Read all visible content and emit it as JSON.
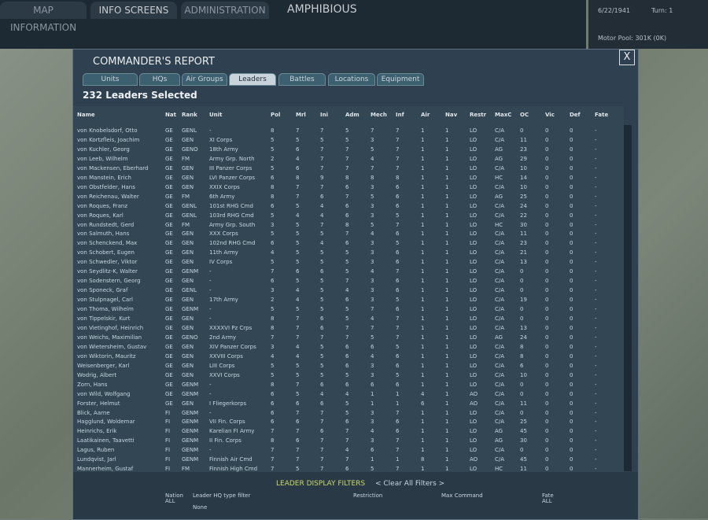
{
  "top_bar": {
    "tabs": [
      "MAP INFORMATION",
      "INFO SCREENS",
      "ADMINISTRATION"
    ],
    "mode": "AMPHIBIOUS",
    "date": "6/22/1941",
    "turn": "Turn: 1",
    "motor_pool": "Motor Pool: 301K (0K)"
  },
  "dialog": {
    "title": "COMMANDER'S REPORT",
    "close": "X",
    "tabs": [
      "Units",
      "HQs",
      "Air Groups",
      "Leaders",
      "Battles",
      "Locations",
      "Equipment"
    ],
    "selected": "232 Leaders Selected"
  },
  "table": {
    "columns": [
      "Name",
      "Nat",
      "Rank",
      "Unit",
      "Pol",
      "Mrl",
      "Ini",
      "Adm",
      "Mech",
      "Inf",
      "Air",
      "Nav",
      "Restr",
      "MaxC",
      "OC",
      "Vic",
      "Def",
      "Fate"
    ],
    "rows": [
      [
        "von Knobelsdorf, Otto",
        "GE",
        "GENL",
        "-",
        "8",
        "7",
        "7",
        "5",
        "7",
        "7",
        "1",
        "1",
        "LO",
        "C/A",
        "0",
        "0",
        "0",
        "-"
      ],
      [
        "von Kortzfleis, Joachim",
        "GE",
        "GEN",
        "XI Corps",
        "5",
        "5",
        "5",
        "5",
        "3",
        "7",
        "1",
        "1",
        "LO",
        "C/A",
        "11",
        "0",
        "0",
        "-"
      ],
      [
        "von Kuchler, Georg",
        "GE",
        "GENO",
        "18th Army",
        "5",
        "6",
        "7",
        "7",
        "5",
        "7",
        "1",
        "1",
        "LO",
        "AG",
        "23",
        "0",
        "0",
        "-"
      ],
      [
        "von Leeb, Wilhelm",
        "GE",
        "FM",
        "Army Grp. North",
        "2",
        "4",
        "7",
        "7",
        "4",
        "7",
        "1",
        "1",
        "LO",
        "AG",
        "29",
        "0",
        "0",
        "-"
      ],
      [
        "von Mackensen, Eberhard",
        "GE",
        "GEN",
        "III Panzer Corps",
        "5",
        "6",
        "7",
        "7",
        "7",
        "7",
        "1",
        "1",
        "LO",
        "C/A",
        "10",
        "0",
        "0",
        "-"
      ],
      [
        "von Manstein, Erich",
        "GE",
        "GEN",
        "LVI Panzer Corps",
        "6",
        "8",
        "9",
        "8",
        "8",
        "8",
        "1",
        "1",
        "LO",
        "HC",
        "14",
        "0",
        "0",
        "-"
      ],
      [
        "von Obstfelder, Hans",
        "GE",
        "GEN",
        "XXIX Corps",
        "8",
        "7",
        "7",
        "6",
        "3",
        "6",
        "1",
        "1",
        "LO",
        "C/A",
        "10",
        "0",
        "0",
        "-"
      ],
      [
        "von Reichenau, Walter",
        "GE",
        "FM",
        "6th Army",
        "8",
        "7",
        "6",
        "7",
        "5",
        "6",
        "1",
        "1",
        "LO",
        "AG",
        "25",
        "0",
        "0",
        "-"
      ],
      [
        "von Roques, Franz",
        "GE",
        "GENL",
        "101st RHG Cmd",
        "6",
        "5",
        "4",
        "6",
        "3",
        "6",
        "1",
        "1",
        "LO",
        "C/A",
        "24",
        "0",
        "0",
        "-"
      ],
      [
        "von Roques, Karl",
        "GE",
        "GENL",
        "103rd RHG Cmd",
        "5",
        "4",
        "4",
        "6",
        "3",
        "5",
        "1",
        "1",
        "LO",
        "C/A",
        "22",
        "0",
        "0",
        "-"
      ],
      [
        "von Rundstedt, Gerd",
        "GE",
        "FM",
        "Army Grp. South",
        "3",
        "5",
        "7",
        "8",
        "5",
        "7",
        "1",
        "1",
        "LO",
        "HC",
        "30",
        "0",
        "0",
        "-"
      ],
      [
        "von Salmuth, Hans",
        "GE",
        "GEN",
        "XXX Corps",
        "5",
        "5",
        "5",
        "7",
        "4",
        "6",
        "1",
        "1",
        "LO",
        "C/A",
        "11",
        "0",
        "0",
        "-"
      ],
      [
        "von Schenckend, Max",
        "GE",
        "GEN",
        "102nd RHG Cmd",
        "6",
        "5",
        "4",
        "6",
        "3",
        "5",
        "1",
        "1",
        "LO",
        "C/A",
        "23",
        "0",
        "0",
        "-"
      ],
      [
        "von Schobert, Eugen",
        "GE",
        "GEN",
        "11th Army",
        "4",
        "5",
        "5",
        "5",
        "3",
        "6",
        "1",
        "1",
        "LO",
        "C/A",
        "21",
        "0",
        "0",
        "-"
      ],
      [
        "von Schwedler, Viktor",
        "GE",
        "GEN",
        "IV Corps",
        "5",
        "5",
        "5",
        "5",
        "3",
        "6",
        "1",
        "1",
        "LO",
        "C/A",
        "13",
        "0",
        "0",
        "-"
      ],
      [
        "von Seydlitz-K, Walter",
        "GE",
        "GENM",
        "-",
        "7",
        "6",
        "6",
        "5",
        "4",
        "7",
        "1",
        "1",
        "LO",
        "C/A",
        "0",
        "0",
        "0",
        "-"
      ],
      [
        "von Sodenstern, Georg",
        "GE",
        "GEN",
        "-",
        "6",
        "5",
        "5",
        "7",
        "3",
        "6",
        "1",
        "1",
        "LO",
        "C/A",
        "0",
        "0",
        "0",
        "-"
      ],
      [
        "von Sponeck, Graf",
        "GE",
        "GENL",
        "-",
        "3",
        "4",
        "5",
        "4",
        "3",
        "6",
        "1",
        "1",
        "LO",
        "C/A",
        "0",
        "0",
        "0",
        "-"
      ],
      [
        "von Stulpnagel, Carl",
        "GE",
        "GEN",
        "17th Army",
        "2",
        "4",
        "5",
        "6",
        "3",
        "5",
        "1",
        "1",
        "LO",
        "C/A",
        "19",
        "0",
        "0",
        "-"
      ],
      [
        "von Thoma, Wilhelm",
        "GE",
        "GENM",
        "-",
        "5",
        "5",
        "5",
        "5",
        "7",
        "6",
        "1",
        "1",
        "LO",
        "C/A",
        "0",
        "0",
        "0",
        "-"
      ],
      [
        "von Tippelskir, Kurt",
        "GE",
        "GEN",
        "-",
        "8",
        "7",
        "6",
        "5",
        "4",
        "7",
        "1",
        "1",
        "LO",
        "C/A",
        "0",
        "0",
        "0",
        "-"
      ],
      [
        "von Vietinghof, Heinrich",
        "GE",
        "GEN",
        "XXXXVI Pz Crps",
        "8",
        "7",
        "6",
        "7",
        "7",
        "7",
        "1",
        "1",
        "LO",
        "C/A",
        "13",
        "0",
        "0",
        "-"
      ],
      [
        "von Weichs, Maximilian",
        "GE",
        "GENO",
        "2nd Army",
        "7",
        "7",
        "7",
        "7",
        "5",
        "7",
        "1",
        "1",
        "LO",
        "AG",
        "24",
        "0",
        "0",
        "-"
      ],
      [
        "von Wietersheim, Gustav",
        "GE",
        "GEN",
        "XIV Panzer Corps",
        "3",
        "4",
        "5",
        "6",
        "6",
        "5",
        "1",
        "1",
        "LO",
        "C/A",
        "8",
        "0",
        "0",
        "-"
      ],
      [
        "von Wiktorin, Mauritz",
        "GE",
        "GEN",
        "XXVIII Corps",
        "4",
        "4",
        "5",
        "6",
        "4",
        "6",
        "1",
        "1",
        "LO",
        "C/A",
        "8",
        "0",
        "0",
        "-"
      ],
      [
        "Weisenberger, Karl",
        "GE",
        "GEN",
        "LIII Corps",
        "5",
        "5",
        "5",
        "6",
        "3",
        "6",
        "1",
        "1",
        "LO",
        "C/A",
        "6",
        "0",
        "0",
        "-"
      ],
      [
        "Wodrig, Albert",
        "GE",
        "GEN",
        "XXVI Corps",
        "5",
        "5",
        "5",
        "5",
        "3",
        "5",
        "1",
        "1",
        "LO",
        "C/A",
        "10",
        "0",
        "0",
        "-"
      ],
      [
        "Zorn, Hans",
        "GE",
        "GENM",
        "-",
        "8",
        "7",
        "6",
        "6",
        "6",
        "6",
        "1",
        "1",
        "LO",
        "C/A",
        "0",
        "0",
        "0",
        "-"
      ],
      [
        "von Wild, Wolfgang",
        "GE",
        "GENM",
        "-",
        "6",
        "5",
        "4",
        "4",
        "1",
        "1",
        "4",
        "1",
        "AO",
        "C/A",
        "0",
        "0",
        "0",
        "-"
      ],
      [
        "Forster, Helmut",
        "GE",
        "GEN",
        "I Fliegerkorps",
        "6",
        "6",
        "6",
        "5",
        "1",
        "1",
        "6",
        "1",
        "AO",
        "C/A",
        "11",
        "0",
        "0",
        "-"
      ],
      [
        "Blick, Aarne",
        "FI",
        "GENM",
        "-",
        "6",
        "7",
        "7",
        "5",
        "3",
        "7",
        "1",
        "1",
        "LO",
        "C/A",
        "0",
        "0",
        "0",
        "-"
      ],
      [
        "Hagglund, Woldemar",
        "FI",
        "GENM",
        "VII Fin. Corps",
        "6",
        "6",
        "7",
        "6",
        "3",
        "6",
        "1",
        "1",
        "LO",
        "C/A",
        "25",
        "0",
        "0",
        "-"
      ],
      [
        "Heinrichs, Erik",
        "FI",
        "GENM",
        "Karelian FI Army",
        "7",
        "7",
        "6",
        "7",
        "4",
        "6",
        "1",
        "1",
        "LO",
        "AG",
        "45",
        "0",
        "0",
        "-"
      ],
      [
        "Laatikainen, Taavetti",
        "FI",
        "GENM",
        "II Fin. Corps",
        "8",
        "6",
        "7",
        "7",
        "3",
        "7",
        "1",
        "1",
        "LO",
        "AG",
        "30",
        "0",
        "0",
        "-"
      ],
      [
        "Lagus, Ruben",
        "FI",
        "GENM",
        "-",
        "7",
        "7",
        "7",
        "4",
        "6",
        "7",
        "1",
        "1",
        "LO",
        "C/A",
        "0",
        "0",
        "0",
        "-"
      ],
      [
        "Lundqvist, Jarl",
        "FI",
        "GENM",
        "Finnish Air Cmd",
        "7",
        "7",
        "7",
        "7",
        "1",
        "1",
        "8",
        "1",
        "AO",
        "C/A",
        "45",
        "0",
        "0",
        "-"
      ],
      [
        "Mannerheim, Gustaf",
        "FI",
        "FM",
        "Finnish High Cmd",
        "7",
        "5",
        "7",
        "6",
        "5",
        "7",
        "1",
        "1",
        "LO",
        "HC",
        "11",
        "0",
        "0",
        "-"
      ]
    ]
  },
  "filters": {
    "title": "LEADER DISPLAY FILTERS",
    "clear": "< Clear All Filters >",
    "nation": "Nation",
    "nation_value": "ALL",
    "hq_type": "Leader HQ type filter",
    "hq_none": "None",
    "restriction": "Restriction",
    "max_command": "Max Command",
    "fate": "Fate",
    "fate_value": "ALL"
  }
}
